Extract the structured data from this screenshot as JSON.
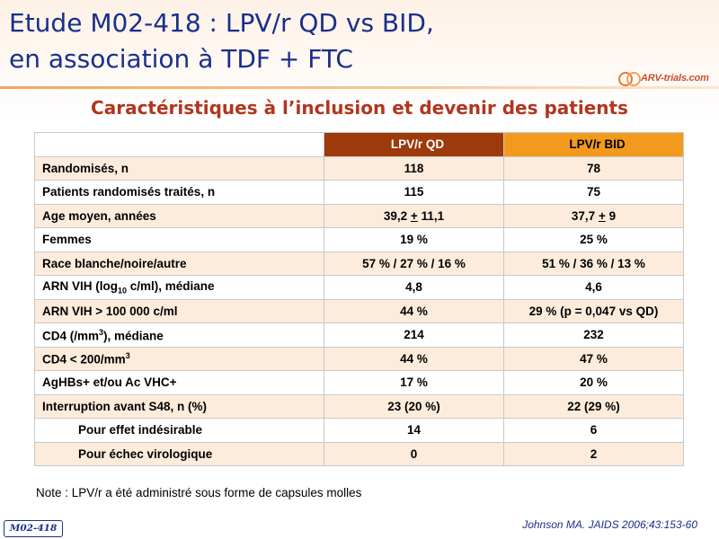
{
  "header": {
    "title_line1": "Etude M02-418 : LPV/r QD vs BID,",
    "title_line2": "en association à TDF + FTC",
    "logo_text": "ARV-trials.com",
    "subtitle": "Caractéristiques à l’inclusion et devenir des patients"
  },
  "table": {
    "columns": [
      "",
      "LPV/r QD",
      "LPV/r BID"
    ],
    "rows": [
      {
        "label": "Randomisés, n",
        "qd": "118",
        "bid": "78"
      },
      {
        "label": "Patients randomisés traités, n",
        "qd": "115",
        "bid": "75"
      },
      {
        "label": "Age moyen, années",
        "qd_a": "39,2",
        "qd_b": "11,1",
        "bid_a": "37,7",
        "bid_b": "9"
      },
      {
        "label": "Femmes",
        "qd": "19 %",
        "bid": "25 %"
      },
      {
        "label": "Race blanche/noire/autre",
        "qd": "57 % / 27 % / 16 %",
        "bid": "51 % / 36 % / 13 %"
      },
      {
        "label_pre": "ARN VIH (log",
        "label_sub": "10",
        "label_post": " c/ml), médiane",
        "qd": "4,8",
        "bid": "4,6"
      },
      {
        "label": "ARN VIH > 100 000 c/ml",
        "qd": "44 %",
        "bid": "29 % (p = 0,047 vs QD)"
      },
      {
        "label_pre": "CD4 (/mm",
        "label_sup": "3",
        "label_post": "), médiane",
        "qd": "214",
        "bid": "232"
      },
      {
        "label_pre": "CD4 < 200/mm",
        "label_sup": "3",
        "label_post": "",
        "qd": "44 %",
        "bid": "47 %"
      },
      {
        "label": "AgHBs+ et/ou Ac VHC+",
        "qd": "17 %",
        "bid": "20 %"
      },
      {
        "label": "Interruption avant S48, n (%)",
        "qd": "23 (20 %)",
        "bid": "22 (29 %)"
      },
      {
        "label": "Pour effet indésirable",
        "qd": "14",
        "bid": "6"
      },
      {
        "label": "Pour échec virologique",
        "qd": "0",
        "bid": "2"
      }
    ]
  },
  "footer": {
    "note": "Note : LPV/r a été administré sous forme de capsules molles",
    "badge": "M02-418",
    "citation": "Johnson MA. JAIDS 2006;43:153-60"
  },
  "colors": {
    "title": "#1a2f8a",
    "subtitle": "#b1361e",
    "header_qd": "#9c3a0c",
    "header_bid": "#f39a1e",
    "row_alt": "#fdecdc"
  }
}
